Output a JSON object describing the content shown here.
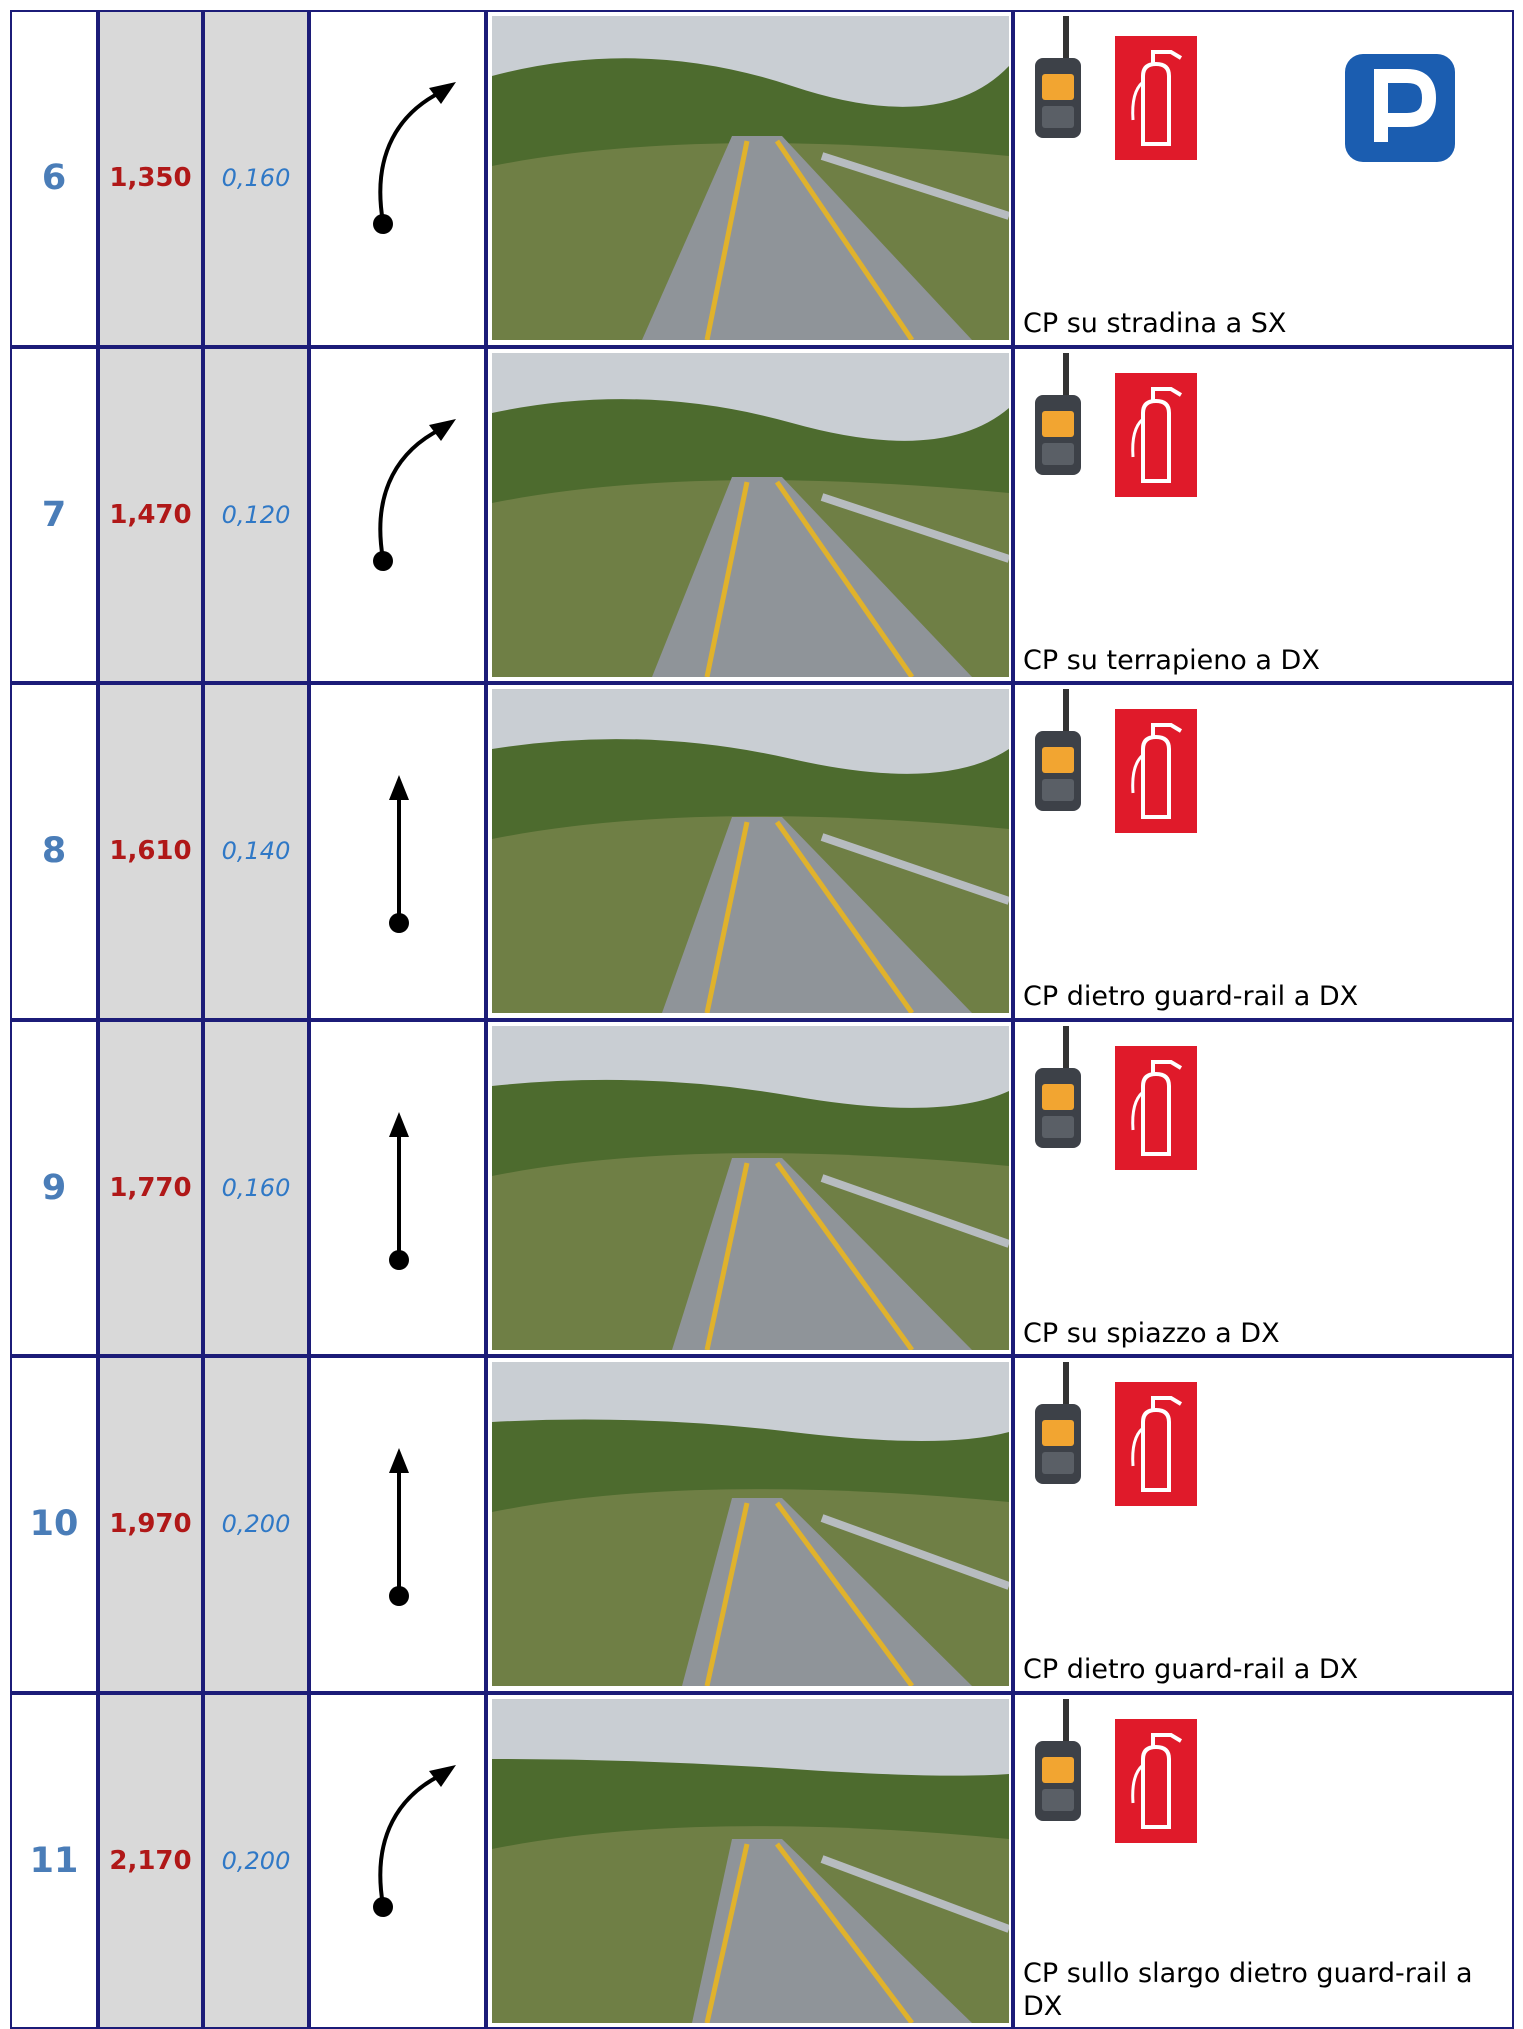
{
  "table": {
    "rows": [
      {
        "number": "6",
        "km": "1,350",
        "distance": "0,160",
        "caption": "CP su stradina a SX"
      },
      {
        "number": "7",
        "km": "1,470",
        "distance": "0,120",
        "caption": "CP su terrapieno a DX"
      },
      {
        "number": "8",
        "km": "1,610",
        "distance": "0,140",
        "caption": "CP dietro guard-rail a DX"
      },
      {
        "number": "9",
        "km": "1,770",
        "distance": "0,160",
        "caption": "CP su spiazzo a DX"
      },
      {
        "number": "10",
        "km": "1,970",
        "distance": "0,200",
        "caption": "CP dietro guard-rail  a DX"
      },
      {
        "number": "11",
        "km": "2,170",
        "distance": "0,200",
        "caption": "CP sullo slargo dietro guard-rail a DX"
      }
    ]
  }
}
